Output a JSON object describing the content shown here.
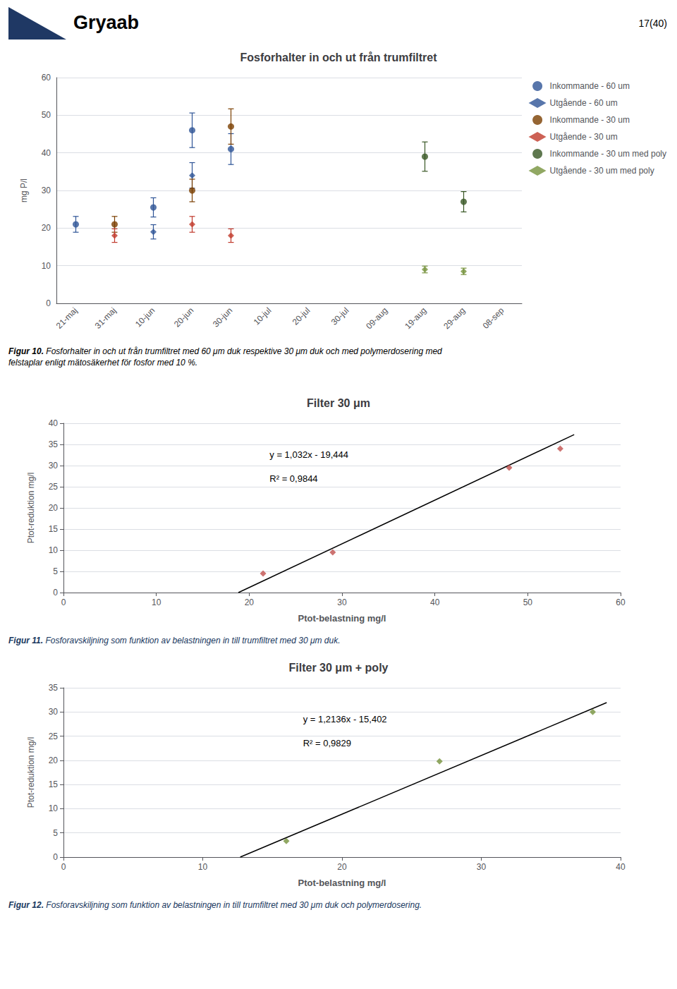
{
  "header": "Gryaab",
  "page_number": "17(40)",
  "chart_data": [
    {
      "type": "scatter",
      "title": "Fosforhalter in och ut från trumfiltret",
      "ylabel": "mg P/l",
      "categories": [
        "21-maj",
        "31-maj",
        "10-jun",
        "20-jun",
        "30-jun",
        "10-jul",
        "20-jul",
        "30-jul",
        "09-aug",
        "19-aug",
        "29-aug",
        "08-sep"
      ],
      "series": [
        {
          "name": "Inkommande - 60 um",
          "color": "#2E5496",
          "marker": "circle",
          "values": [
            21.0,
            null,
            25.5,
            46.0,
            41.0,
            null,
            null,
            null,
            null,
            null,
            null,
            null
          ],
          "yerr": [
            2.1,
            null,
            2.55,
            4.6,
            4.1,
            null,
            null,
            null,
            null,
            null,
            null,
            null
          ]
        },
        {
          "name": "Utgående - 60 um",
          "color": "#2E5496",
          "marker": "diamond",
          "values": [
            null,
            null,
            19.0,
            34.0,
            null,
            null,
            null,
            null,
            null,
            null,
            null,
            null
          ],
          "yerr": [
            null,
            null,
            1.9,
            3.4,
            null,
            null,
            null,
            null,
            null,
            null,
            null,
            null
          ]
        },
        {
          "name": "Inkommande - 30 um",
          "color": "#7B3F00",
          "marker": "circle",
          "values": [
            null,
            21.0,
            null,
            30.0,
            47.0,
            null,
            null,
            null,
            null,
            null,
            null,
            null
          ],
          "yerr": [
            null,
            2.1,
            null,
            3.0,
            4.7,
            null,
            null,
            null,
            null,
            null,
            null,
            null
          ]
        },
        {
          "name": "Utgående - 30 um",
          "color": "#C0392B",
          "marker": "diamond",
          "values": [
            null,
            18.0,
            null,
            21.0,
            18.0,
            null,
            null,
            null,
            null,
            null,
            null,
            null
          ],
          "yerr": [
            null,
            1.8,
            null,
            2.1,
            1.8,
            null,
            null,
            null,
            null,
            null,
            null,
            null
          ]
        },
        {
          "name": "Inkommande - 30 um med poly",
          "color": "#375623",
          "marker": "circle",
          "values": [
            null,
            null,
            null,
            null,
            null,
            null,
            null,
            null,
            null,
            39.0,
            27.0,
            null
          ],
          "yerr": [
            null,
            null,
            null,
            null,
            null,
            null,
            null,
            null,
            null,
            3.9,
            2.7,
            null
          ]
        },
        {
          "name": "Utgående - 30 um med poly",
          "color": "#76923C",
          "marker": "diamond",
          "values": [
            null,
            null,
            null,
            null,
            null,
            null,
            null,
            null,
            null,
            9.0,
            8.5,
            null
          ],
          "yerr": [
            null,
            null,
            null,
            null,
            null,
            null,
            null,
            null,
            null,
            0.9,
            0.85,
            null
          ]
        }
      ],
      "ylim": [
        0,
        60
      ],
      "yticks": [
        0,
        10,
        20,
        30,
        40,
        50,
        60
      ],
      "grid": true,
      "legend": "upper right",
      "caption": [
        "Figur 10.",
        "Fosforhalter in och ut från trumfiltret med 60 μm duk respektive 30 μm duk och med polymerdosering med\nfelstaplar enligt mätosäkerhet för fosfor med 10 %."
      ]
    },
    {
      "type": "scatter",
      "title": "Filter 30 μm",
      "xlabel": "Ptot-belastning mg/l",
      "ylabel": "Ptot-reduktion mg/l",
      "series": [
        {
          "type": "line",
          "color": "#000000",
          "line_style": "solid",
          "x": [
            18.8410853,
            55.0
          ],
          "values": [
            0,
            37.316
          ]
        },
        {
          "type": "scatter",
          "color": "#C0504D",
          "marker": "diamond",
          "x": [
            21.5,
            29.0,
            48.0,
            53.5
          ],
          "values": [
            4.5,
            9.5,
            29.5,
            34.0
          ]
        }
      ],
      "xlim": [
        0,
        60
      ],
      "ylim": [
        0,
        40
      ],
      "xticks": [
        0,
        10,
        20,
        30,
        40,
        50,
        60
      ],
      "yticks": [
        0,
        5,
        10,
        15,
        20,
        25,
        30,
        35,
        40
      ],
      "grid": true,
      "annotations": [
        {
          "text": "y = 1,032x - 19,444"
        },
        {
          "text": "R² = 0,9844"
        }
      ],
      "caption": [
        "Figur 11.",
        "Fosforavskiljning som funktion av belastningen in till trumfiltret med 30 μm duk."
      ]
    },
    {
      "type": "scatter",
      "title": "Filter 30 μm + poly",
      "xlabel": "Ptot-belastning mg/l",
      "ylabel": "Ptot-reduktion mg/l",
      "series": [
        {
          "type": "line",
          "color": "#000000",
          "line_style": "solid",
          "x": [
            12.6911668,
            39.0
          ],
          "values": [
            0,
            31.9284
          ]
        },
        {
          "type": "scatter",
          "color": "#76923C",
          "marker": "diamond",
          "x": [
            16.0,
            27.0,
            38.0
          ],
          "values": [
            3.3,
            19.8,
            30.0
          ]
        }
      ],
      "xlim": [
        0,
        40
      ],
      "ylim": [
        0,
        35
      ],
      "xticks": [
        0,
        10,
        20,
        30,
        40
      ],
      "yticks": [
        0,
        5,
        10,
        15,
        20,
        25,
        30,
        35
      ],
      "grid": true,
      "annotations": [
        {
          "text": "y = 1,2136x - 15,402"
        },
        {
          "text": "R² = 0,9829"
        }
      ],
      "caption": [
        "Figur 12.",
        "Fosforavskiljning som funktion av belastningen in till trumfiltret med 30 μm duk och polymerdosering."
      ]
    }
  ]
}
